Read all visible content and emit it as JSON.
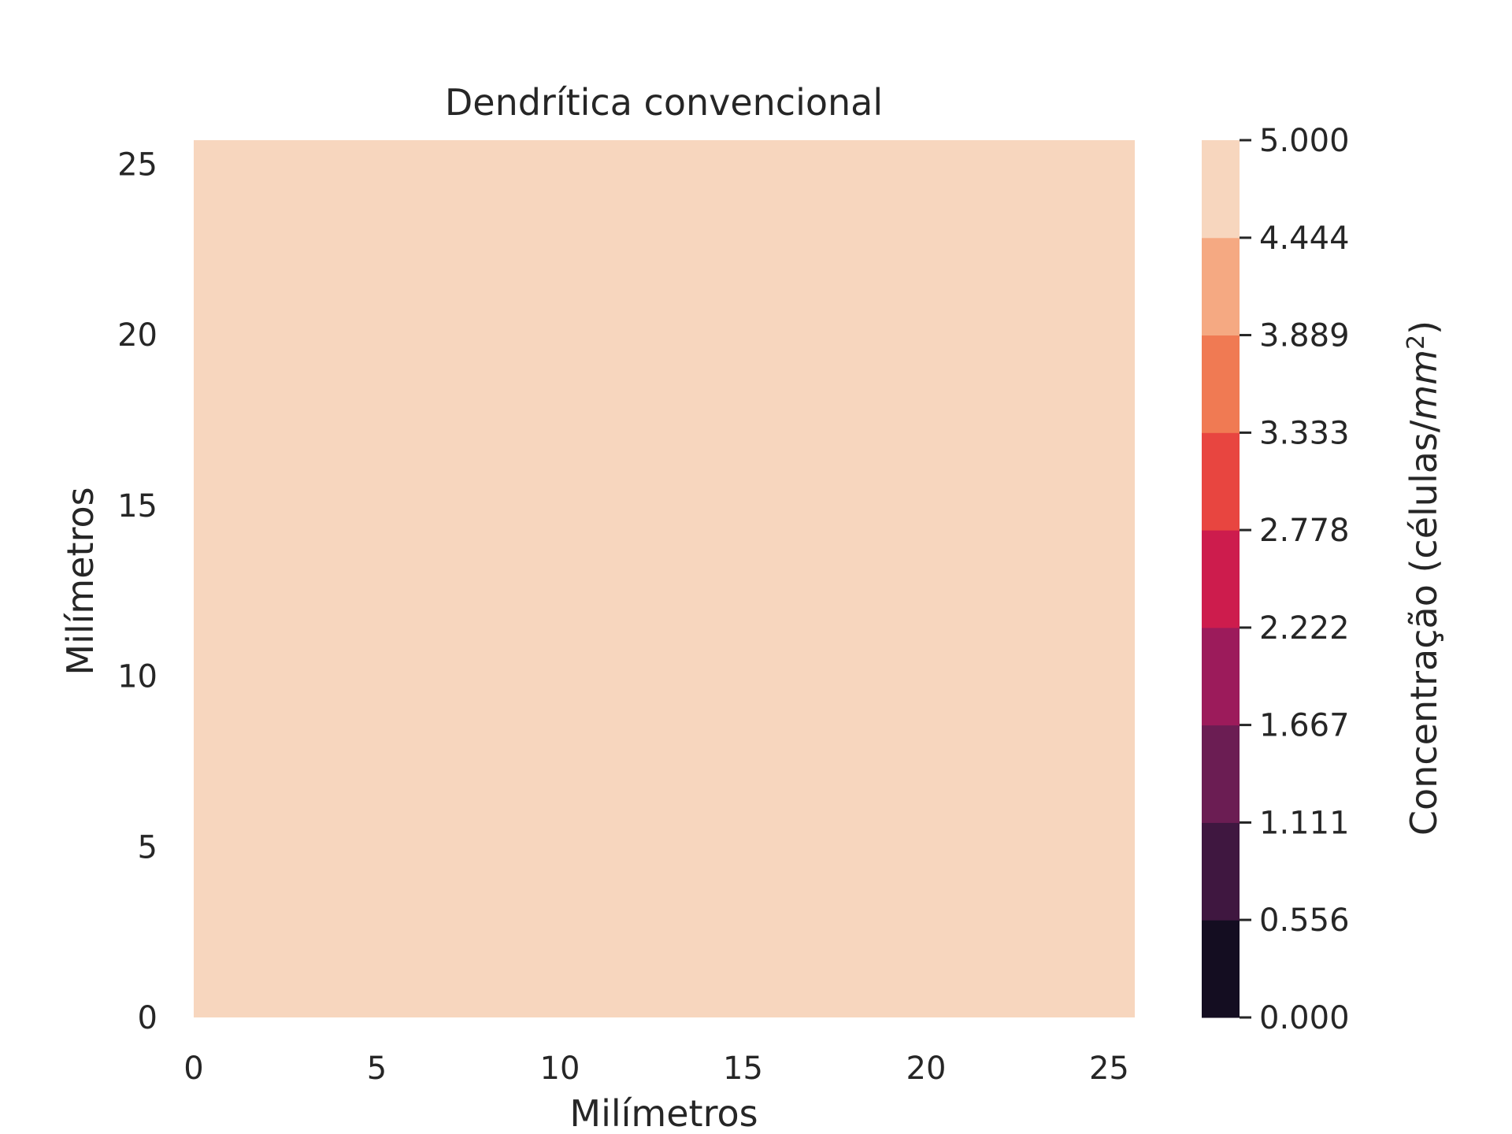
{
  "chart_data": {
    "type": "heatmap",
    "title": "Dendrítica convencional",
    "xlabel": "Milímetros",
    "ylabel": "Milímetros",
    "xlim": [
      0,
      25.7
    ],
    "ylim": [
      0,
      25.7
    ],
    "x_ticks": [
      "0",
      "5",
      "10",
      "15",
      "20",
      "25"
    ],
    "y_ticks": [
      "0",
      "5",
      "10",
      "15",
      "20",
      "25"
    ],
    "x_tick_values": [
      0,
      5,
      10,
      15,
      20,
      25
    ],
    "y_tick_values": [
      0,
      5,
      10,
      15,
      20,
      25
    ],
    "field_value": 5.0,
    "field_color": "#f7d6be",
    "colorbar": {
      "label_prefix": "Concentração (células/",
      "label_unit": "mm",
      "label_exp": "2",
      "label_suffix": ")",
      "min": 0.0,
      "max": 5.0,
      "tick_labels": [
        "0.000",
        "0.556",
        "1.111",
        "1.667",
        "2.222",
        "2.778",
        "3.333",
        "3.889",
        "4.444",
        "5.000"
      ],
      "tick_values": [
        0.0,
        0.556,
        1.111,
        1.667,
        2.222,
        2.778,
        3.333,
        3.889,
        4.444,
        5.0
      ],
      "colors": [
        "#140d21",
        "#3f1740",
        "#6b1d53",
        "#9c1b5b",
        "#cd1c4d",
        "#e84540",
        "#f07a53",
        "#f5a982",
        "#f7d6be"
      ]
    }
  }
}
